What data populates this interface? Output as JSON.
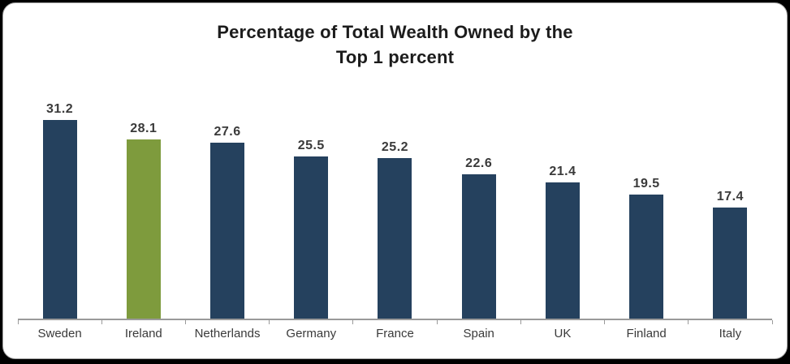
{
  "frame": {
    "background_color": "#000000",
    "card_background": "#ffffff",
    "card_border_color": "#a5a5a5"
  },
  "chart_data": {
    "type": "bar",
    "title": "Percentage of Total Wealth Owned by the Top 1 percent",
    "title_lines": [
      "Percentage of Total Wealth Owned by the",
      "Top 1 percent"
    ],
    "categories": [
      "Sweden",
      "Ireland",
      "Netherlands",
      "Germany",
      "France",
      "Spain",
      "UK",
      "Finland",
      "Italy"
    ],
    "values": [
      31.2,
      28.1,
      27.6,
      25.5,
      25.2,
      22.6,
      21.4,
      19.5,
      17.4
    ],
    "value_labels": [
      "31.2",
      "28.1",
      "27.6",
      "25.5",
      "25.2",
      "22.6",
      "21.4",
      "19.5",
      "17.4"
    ],
    "xlabel": "",
    "ylabel": "",
    "ylim": [
      0,
      36
    ],
    "grid": false,
    "legend": false,
    "data_labels_position": "above-bar",
    "bar_color_default": "#25415E",
    "bar_color_highlight": "#7E9B3D",
    "highlight_category": "Ireland",
    "axis_line_color": "#9a9a9a",
    "label_color": "#3a3a3a",
    "title_color": "#1c1c1c"
  }
}
